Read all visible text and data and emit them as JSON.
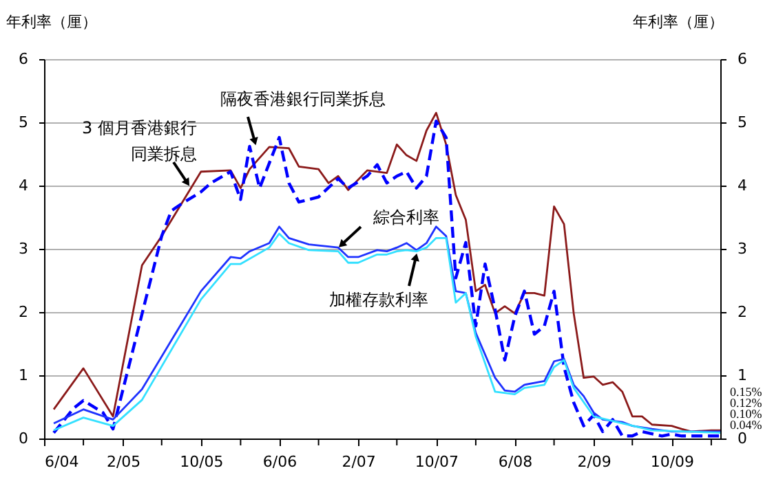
{
  "chart_data": {
    "type": "line",
    "ylabel": "年利率（厘）",
    "y2label": "年利率（厘）",
    "xlim": [
      "2004-06",
      "2010-03"
    ],
    "xticks": [
      {
        "value": "2004-06",
        "label": "6/04"
      },
      {
        "value": "2004-10",
        "label": null
      },
      {
        "value": "2005-02",
        "label": "2/05"
      },
      {
        "value": "2005-06",
        "label": null
      },
      {
        "value": "2005-10",
        "label": "10/05"
      },
      {
        "value": "2006-02",
        "label": null
      },
      {
        "value": "2006-06",
        "label": "6/06"
      },
      {
        "value": "2006-10",
        "label": null
      },
      {
        "value": "2007-02",
        "label": "2/07"
      },
      {
        "value": "2007-06",
        "label": null
      },
      {
        "value": "2007-10",
        "label": "10/07"
      },
      {
        "value": "2008-02",
        "label": null
      },
      {
        "value": "2008-06",
        "label": "6/08"
      },
      {
        "value": "2008-10",
        "label": null
      },
      {
        "value": "2009-02",
        "label": "2/09"
      },
      {
        "value": "2009-06",
        "label": null
      },
      {
        "value": "2009-10",
        "label": "10/09"
      },
      {
        "value": "2010-02",
        "label": null
      }
    ],
    "ylim": [
      0,
      6
    ],
    "yticks": [
      0,
      1,
      2,
      3,
      4,
      5,
      6
    ],
    "y2lim": [
      0,
      6
    ],
    "y2ticks": [
      0,
      1,
      2,
      3,
      4,
      5,
      6
    ],
    "grid": "y",
    "series": [
      {
        "name": "3 個月香港銀行同業拆息",
        "color": "#8b1a1a",
        "line_style": "solid",
        "x": [
          "2004-07",
          "2004-10",
          "2005-01",
          "2005-04",
          "2005-06",
          "2005-10",
          "2006-01",
          "2006-02",
          "2006-03",
          "2006-05",
          "2006-07",
          "2006-08",
          "2006-10",
          "2006-11",
          "2006-12",
          "2007-01",
          "2007-03",
          "2007-05",
          "2007-06",
          "2007-07",
          "2007-08",
          "2007-09",
          "2007-10",
          "2007-11",
          "2007-12",
          "2008-01",
          "2008-02",
          "2008-03",
          "2008-04",
          "2008-05",
          "2008-06",
          "2008-07",
          "2008-08",
          "2008-09",
          "2008-10",
          "2008-11",
          "2008-12",
          "2009-01",
          "2009-02",
          "2009-03",
          "2009-04",
          "2009-05",
          "2009-06",
          "2009-07",
          "2009-08",
          "2009-10",
          "2009-11",
          "2009-12",
          "2010-02",
          "2010-03"
        ],
        "values": [
          0.46,
          1.11,
          0.35,
          2.74,
          3.2,
          4.22,
          4.24,
          3.96,
          4.26,
          4.61,
          4.59,
          4.3,
          4.26,
          4.04,
          4.15,
          3.93,
          4.24,
          4.2,
          4.65,
          4.48,
          4.39,
          4.87,
          5.15,
          4.65,
          3.85,
          3.46,
          2.33,
          2.43,
          1.98,
          2.09,
          1.98,
          2.3,
          2.3,
          2.26,
          3.67,
          3.39,
          1.98,
          0.96,
          0.98,
          0.85,
          0.89,
          0.74,
          0.35,
          0.35,
          0.22,
          0.2,
          0.15,
          0.11,
          0.13,
          0.13
        ]
      },
      {
        "name": "隔夜香港銀行同業拆息",
        "color": "#0000ff",
        "line_style": "dashed",
        "x": [
          "2004-07",
          "2004-09",
          "2004-10",
          "2004-12",
          "2005-01",
          "2005-06",
          "2005-07",
          "2005-08",
          "2005-10",
          "2005-11",
          "2006-01",
          "2006-02",
          "2006-03",
          "2006-04",
          "2006-06",
          "2006-07",
          "2006-08",
          "2006-10",
          "2006-12",
          "2007-01",
          "2007-03",
          "2007-04",
          "2007-05",
          "2007-06",
          "2007-07",
          "2007-08",
          "2007-09",
          "2007-10",
          "2007-11",
          "2007-12",
          "2008-01",
          "2008-02",
          "2008-03",
          "2008-04",
          "2008-05",
          "2008-06",
          "2008-07",
          "2008-08",
          "2008-09",
          "2008-10",
          "2008-11",
          "2008-12",
          "2009-01",
          "2009-02",
          "2009-03",
          "2009-04",
          "2009-05",
          "2009-06",
          "2009-07",
          "2009-09",
          "2009-10",
          "2009-11",
          "2010-01",
          "2010-03"
        ],
        "values": [
          0.09,
          0.48,
          0.6,
          0.41,
          0.15,
          3.2,
          3.6,
          3.71,
          3.9,
          4.04,
          4.22,
          3.78,
          4.62,
          3.96,
          4.76,
          4.04,
          3.74,
          3.82,
          4.11,
          3.96,
          4.15,
          4.33,
          4.04,
          4.15,
          4.22,
          3.96,
          4.15,
          5.02,
          4.76,
          2.54,
          3.1,
          1.78,
          2.76,
          2.04,
          1.24,
          1.93,
          2.33,
          1.65,
          1.78,
          2.33,
          1.13,
          0.57,
          0.2,
          0.37,
          0.11,
          0.3,
          0.04,
          0.04,
          0.11,
          0.04,
          0.07,
          0.04,
          0.04,
          0.04
        ]
      },
      {
        "name": "綜合利率",
        "color": "#1e32ff",
        "line_style": "solid",
        "x": [
          "2004-07",
          "2004-10",
          "2005-01",
          "2005-04",
          "2005-10",
          "2006-01",
          "2006-02",
          "2006-03",
          "2006-05",
          "2006-06",
          "2006-07",
          "2006-09",
          "2006-12",
          "2007-01",
          "2007-02",
          "2007-04",
          "2007-05",
          "2007-06",
          "2007-07",
          "2007-08",
          "2007-09",
          "2007-10",
          "2007-11",
          "2007-12",
          "2008-01",
          "2008-02",
          "2008-04",
          "2008-05",
          "2008-06",
          "2008-07",
          "2008-09",
          "2008-10",
          "2008-11",
          "2008-12",
          "2009-01",
          "2009-02",
          "2009-03",
          "2009-05",
          "2009-06",
          "2009-08",
          "2009-10",
          "2010-03"
        ],
        "values": [
          0.24,
          0.46,
          0.3,
          0.78,
          2.33,
          2.87,
          2.85,
          2.96,
          3.09,
          3.35,
          3.17,
          3.07,
          3.02,
          2.87,
          2.87,
          2.98,
          2.96,
          3.02,
          3.09,
          2.98,
          3.09,
          3.35,
          3.2,
          2.33,
          2.3,
          1.67,
          0.96,
          0.76,
          0.74,
          0.85,
          0.91,
          1.22,
          1.26,
          0.85,
          0.67,
          0.41,
          0.3,
          0.26,
          0.2,
          0.15,
          0.11,
          0.11
        ]
      },
      {
        "name": "加權存款利率",
        "color": "#33e0ff",
        "line_style": "solid",
        "x": [
          "2004-07",
          "2004-10",
          "2005-01",
          "2005-04",
          "2005-10",
          "2006-01",
          "2006-02",
          "2006-05",
          "2006-06",
          "2006-07",
          "2006-09",
          "2006-12",
          "2007-01",
          "2007-02",
          "2007-04",
          "2007-05",
          "2007-06",
          "2007-07",
          "2007-08",
          "2007-09",
          "2007-10",
          "2007-11",
          "2007-12",
          "2008-01",
          "2008-02",
          "2008-04",
          "2008-06",
          "2008-07",
          "2008-09",
          "2008-10",
          "2008-11",
          "2008-12",
          "2009-02",
          "2009-05",
          "2009-08",
          "2010-03"
        ],
        "values": [
          0.13,
          0.33,
          0.2,
          0.61,
          2.2,
          2.76,
          2.76,
          3.02,
          3.24,
          3.09,
          2.98,
          2.96,
          2.78,
          2.78,
          2.91,
          2.91,
          2.96,
          2.98,
          2.96,
          3.02,
          3.17,
          3.17,
          2.15,
          2.3,
          1.61,
          0.74,
          0.7,
          0.8,
          0.85,
          1.13,
          1.24,
          0.8,
          0.35,
          0.24,
          0.13,
          0.09
        ]
      }
    ],
    "annotations": [
      "0.15%",
      "0.12%",
      "0.10%",
      "0.04%"
    ]
  }
}
